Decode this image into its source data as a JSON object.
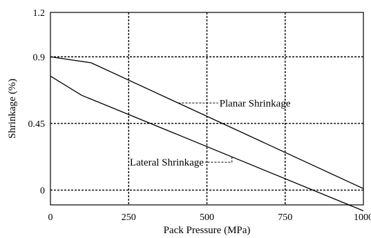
{
  "chart_data": {
    "type": "line",
    "title": "",
    "xlabel": "Pack Pressure (MPa)",
    "ylabel": "Shrinkage (%)",
    "xlim": [
      0,
      1000
    ],
    "ylim": [
      -0.1,
      1.2
    ],
    "xticks": [
      0,
      250,
      500,
      750,
      1000
    ],
    "yticks": [
      0,
      0.45,
      0.9,
      1.2
    ],
    "xtick_labels": [
      "0",
      "250",
      "500",
      "750",
      "1000"
    ],
    "ytick_labels": [
      "0",
      "0.45",
      "0.9",
      "1.2"
    ],
    "grid": true,
    "legend": "none",
    "series": [
      {
        "name": "Planar Shrinkage",
        "x": [
          0,
          130,
          1000
        ],
        "y": [
          0.9,
          0.86,
          0.01
        ]
      },
      {
        "name": "Lateral Shrinkage",
        "x": [
          0,
          100,
          170,
          1000
        ],
        "y": [
          0.77,
          0.64,
          0.58,
          -0.14
        ]
      }
    ],
    "annotations": [
      {
        "text": "Planar Shrinkage",
        "series": 0,
        "at_x": 410,
        "label_x": 540,
        "label_y": 0.565,
        "anchor": "start"
      },
      {
        "text": "Lateral Shrinkage",
        "series": 1,
        "at_x": 580,
        "label_x": 490,
        "label_y": 0.165,
        "anchor": "end"
      }
    ]
  }
}
